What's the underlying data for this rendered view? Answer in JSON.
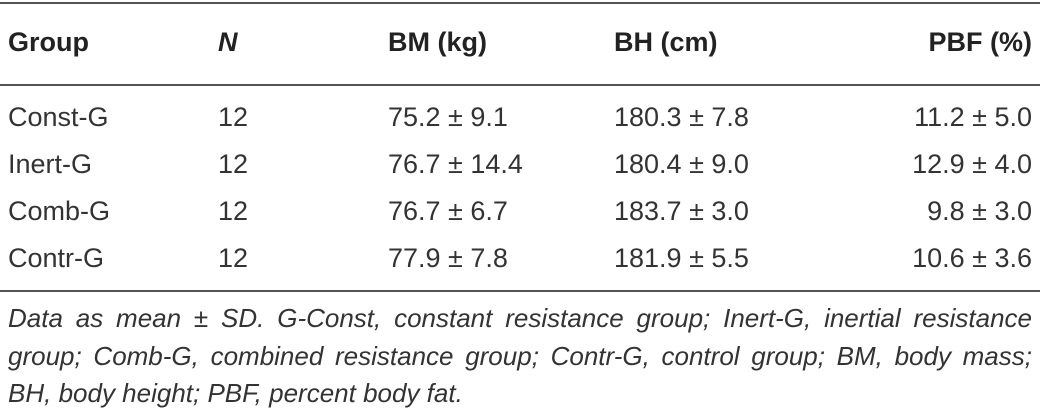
{
  "table": {
    "headers": [
      "Group",
      "N",
      "BM (kg)",
      "BH (cm)",
      "PBF (%)"
    ],
    "rows": [
      [
        "Const-G",
        "12",
        "75.2 ± 9.1",
        "180.3 ± 7.8",
        "11.2 ± 5.0"
      ],
      [
        "Inert-G",
        "12",
        "76.7 ± 14.4",
        "180.4 ± 9.0",
        "12.9 ± 4.0"
      ],
      [
        "Comb-G",
        "12",
        "76.7 ± 6.7",
        "183.7 ± 3.0",
        "9.8 ± 3.0"
      ],
      [
        "Contr-G",
        "12",
        "77.9 ± 7.8",
        "181.9 ± 5.5",
        "10.6 ± 3.6"
      ]
    ]
  },
  "footnote": "Data as mean ± SD. G-Const, constant resistance group; Inert-G, inertial resistance group; Comb-G, combined resistance group; Contr-G, control group; BM, body mass; BH, body height; PBF, percent body fat."
}
